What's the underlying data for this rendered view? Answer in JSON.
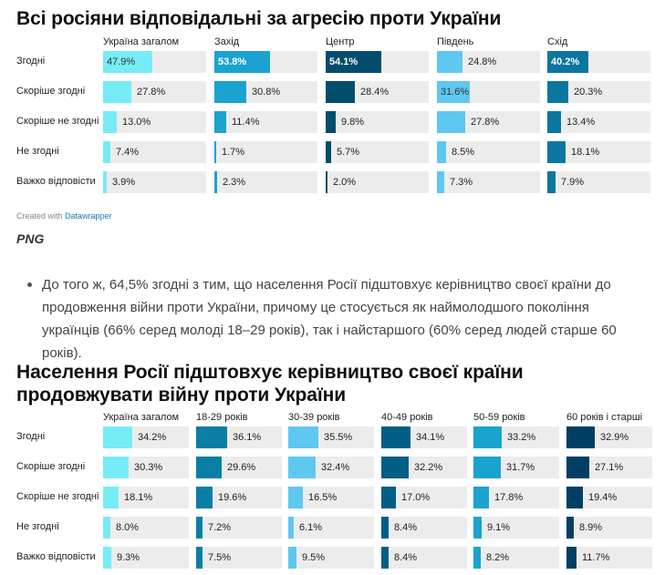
{
  "chart1": {
    "title": "Всі росіяни відповідальні за агресію проти України",
    "columns": [
      "Україна загалом",
      "Захід",
      "Центр",
      "Південь",
      "Схід"
    ],
    "rows": [
      "Згодні",
      "Скоріше згодні",
      "Скоріше не згодні",
      "Не згодні",
      "Важко відповісти"
    ]
  },
  "chart2": {
    "title": "Населення Росії підштовхує керівництво своєї країни продовжувати війну проти України",
    "columns": [
      "Україна загалом",
      "18-29 років",
      "30-39 років",
      "40-49 років",
      "50-59 років",
      "60 років і старші"
    ],
    "rows": [
      "Згодні",
      "Скоріше згодні",
      "Скоріше не згодні",
      "Не згодні",
      "Важко відповісти"
    ]
  },
  "chart_data": [
    {
      "type": "bar",
      "title": "Всі росіяни відповідальні за агресію проти України",
      "categories": [
        "Згодні",
        "Скоріше згодні",
        "Скоріше не згодні",
        "Не згодні",
        "Важко відповісти"
      ],
      "series": [
        {
          "name": "Україна загалом",
          "values": [
            47.9,
            27.8,
            13.0,
            7.4,
            3.9
          ],
          "labels": [
            "47.9%",
            "27.8%",
            "13.0%",
            "7.4%",
            "3.9%"
          ],
          "color": "#76ecf7"
        },
        {
          "name": "Захід",
          "values": [
            53.8,
            30.8,
            11.4,
            1.7,
            2.3
          ],
          "labels": [
            "53.8%",
            "30.8%",
            "11.4%",
            "1.7%",
            "2.3%"
          ],
          "color": "#1aa3cf"
        },
        {
          "name": "Центр",
          "values": [
            54.1,
            28.4,
            9.8,
            5.7,
            2.0
          ],
          "labels": [
            "54.1%",
            "28.4%",
            "9.8%",
            "5.7%",
            "2.0%"
          ],
          "color": "#004d6d"
        },
        {
          "name": "Південь",
          "values": [
            24.8,
            31.6,
            27.8,
            8.5,
            7.3
          ],
          "labels": [
            "24.8%",
            "31.6%",
            "27.8%",
            "8.5%",
            "7.3%"
          ],
          "color": "#5ec8f0"
        },
        {
          "name": "Схід",
          "values": [
            40.2,
            20.3,
            13.4,
            18.1,
            7.9
          ],
          "labels": [
            "40.2%",
            "20.3%",
            "13.4%",
            "18.1%",
            "7.9%"
          ],
          "color": "#0b76a0"
        }
      ],
      "xlim": [
        0,
        100
      ]
    },
    {
      "type": "bar",
      "title": "Населення Росії підштовхує керівництво своєї країни продовжувати війну проти України",
      "categories": [
        "Згодні",
        "Скоріше згодні",
        "Скоріше не згодні",
        "Не згодні",
        "Важко відповісти"
      ],
      "series": [
        {
          "name": "Україна загалом",
          "values": [
            34.2,
            30.3,
            18.1,
            8.0,
            9.3
          ],
          "labels": [
            "34.2%",
            "30.3%",
            "18.1%",
            "8.0%",
            "9.3%"
          ],
          "color": "#76ecf7"
        },
        {
          "name": "18-29 років",
          "values": [
            36.1,
            29.6,
            19.6,
            7.2,
            7.5
          ],
          "labels": [
            "36.1%",
            "29.6%",
            "19.6%",
            "7.2%",
            "7.5%"
          ],
          "color": "#0b7fa3"
        },
        {
          "name": "30-39 років",
          "values": [
            35.5,
            32.4,
            16.5,
            6.1,
            9.5
          ],
          "labels": [
            "35.5%",
            "32.4%",
            "16.5%",
            "6.1%",
            "9.5%"
          ],
          "color": "#5ec8f0"
        },
        {
          "name": "40-49 років",
          "values": [
            34.1,
            32.2,
            17.0,
            8.4,
            8.4
          ],
          "labels": [
            "34.1%",
            "32.2%",
            "17.0%",
            "8.4%",
            "8.4%"
          ],
          "color": "#005f85"
        },
        {
          "name": "50-59 років",
          "values": [
            33.2,
            31.7,
            17.8,
            9.1,
            8.2
          ],
          "labels": [
            "33.2%",
            "31.7%",
            "17.8%",
            "9.1%",
            "8.2%"
          ],
          "color": "#1aa3cf"
        },
        {
          "name": "60 років і старші",
          "values": [
            32.9,
            27.1,
            19.4,
            8.9,
            11.7
          ],
          "labels": [
            "32.9%",
            "27.1%",
            "19.4%",
            "8.9%",
            "11.7%"
          ],
          "color": "#003f63"
        }
      ],
      "xlim": [
        0,
        100
      ]
    }
  ],
  "credit": {
    "prefix": "Created with",
    "link": "Datawrapper"
  },
  "png_label": "PNG",
  "paragraph": "До того ж, 64,5% згодні з тим, що населення Росії підштовхує керівництво своєї країни до продовження  війни проти України, причому це стосується як наймолодшого покоління українців (66% серед молоді 18–29 років), так і найстаршого (60% серед людей старше 60 років)."
}
